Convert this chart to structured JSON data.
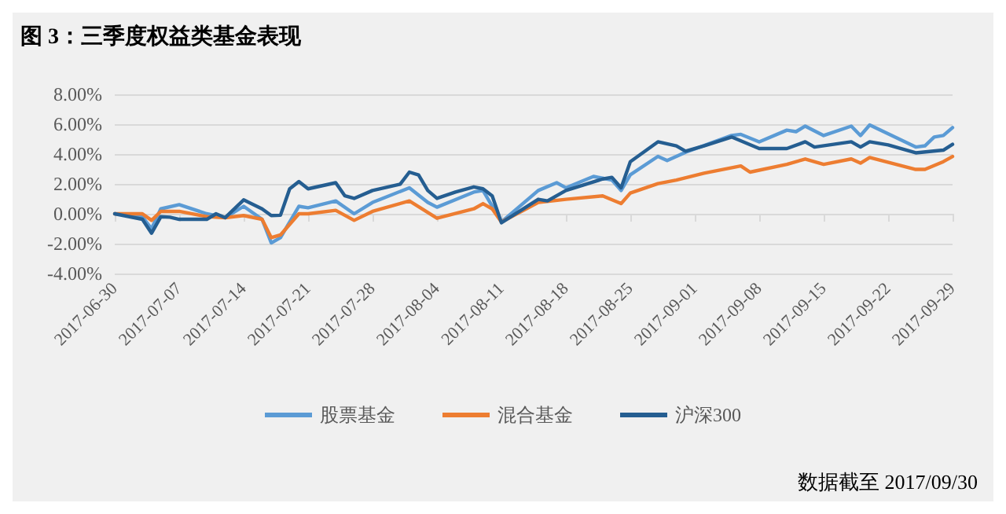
{
  "chart_data": {
    "type": "line",
    "title": "图 3：三季度权益类基金表现",
    "annotations": [
      "数据截至 2017/09/30"
    ],
    "xlim": [
      "2017-06-30",
      "2017-09-29"
    ],
    "xticks": [
      "2017-06-30",
      "2017-07-07",
      "2017-07-14",
      "2017-07-21",
      "2017-07-28",
      "2017-08-04",
      "2017-08-11",
      "2017-08-18",
      "2017-08-25",
      "2017-09-01",
      "2017-09-08",
      "2017-09-15",
      "2017-09-22",
      "2017-09-29"
    ],
    "ylim": [
      -4,
      8
    ],
    "yticks": [
      {
        "value": -4,
        "label": "-4.00%"
      },
      {
        "value": -2,
        "label": "-2.00%"
      },
      {
        "value": 0,
        "label": "0.00%"
      },
      {
        "value": 2,
        "label": "2.00%"
      },
      {
        "value": 4,
        "label": "4.00%"
      },
      {
        "value": 6,
        "label": "6.00%"
      },
      {
        "value": 8,
        "label": "8.00%"
      }
    ],
    "grid": "y",
    "legend": "bottom",
    "marker": "none",
    "line_style": "solid",
    "series": [
      {
        "name": "股票基金",
        "color": "#5b9bd5",
        "x": [
          "2017-06-30",
          "2017-07-03",
          "2017-07-04",
          "2017-07-05",
          "2017-07-07",
          "2017-07-10",
          "2017-07-12",
          "2017-07-14",
          "2017-07-16",
          "2017-07-17",
          "2017-07-18",
          "2017-07-20",
          "2017-07-21",
          "2017-07-24",
          "2017-07-26",
          "2017-07-28",
          "2017-08-01",
          "2017-08-03",
          "2017-08-04",
          "2017-08-08",
          "2017-08-09",
          "2017-08-11",
          "2017-08-15",
          "2017-08-17",
          "2017-08-18",
          "2017-08-21",
          "2017-08-23",
          "2017-08-24",
          "2017-08-25",
          "2017-08-28",
          "2017-08-29",
          "2017-08-31",
          "2017-09-05",
          "2017-09-06",
          "2017-09-08",
          "2017-09-11",
          "2017-09-12",
          "2017-09-13",
          "2017-09-15",
          "2017-09-18",
          "2017-09-19",
          "2017-09-20",
          "2017-09-25",
          "2017-09-26",
          "2017-09-27",
          "2017-09-28",
          "2017-09-29"
        ],
        "values": [
          0,
          -0.2,
          -1.0,
          0.33,
          0.61,
          0,
          -0.26,
          0.5,
          -0.37,
          -1.95,
          -1.6,
          0.5,
          0.4,
          0.86,
          0,
          0.76,
          1.74,
          0.76,
          0.44,
          1.45,
          1.56,
          -0.55,
          1.56,
          2.08,
          1.74,
          2.5,
          2.26,
          1.56,
          2.61,
          3.84,
          3.56,
          4.12,
          5.24,
          5.32,
          4.82,
          5.6,
          5.5,
          5.87,
          5.24,
          5.87,
          5.24,
          5.95,
          4.47,
          4.55,
          5.14,
          5.24,
          5.77
        ]
      },
      {
        "name": "混合基金",
        "color": "#ed7d31",
        "x": [
          "2017-06-30",
          "2017-07-03",
          "2017-07-04",
          "2017-07-05",
          "2017-07-07",
          "2017-07-10",
          "2017-07-12",
          "2017-07-14",
          "2017-07-16",
          "2017-07-17",
          "2017-07-18",
          "2017-07-20",
          "2017-07-21",
          "2017-07-24",
          "2017-07-26",
          "2017-07-28",
          "2017-08-01",
          "2017-08-04",
          "2017-08-08",
          "2017-08-09",
          "2017-08-10",
          "2017-08-11",
          "2017-08-15",
          "2017-08-18",
          "2017-08-22",
          "2017-08-24",
          "2017-08-25",
          "2017-08-28",
          "2017-08-30",
          "2017-09-02",
          "2017-09-06",
          "2017-09-07",
          "2017-09-11",
          "2017-09-13",
          "2017-09-15",
          "2017-09-18",
          "2017-09-19",
          "2017-09-20",
          "2017-09-25",
          "2017-09-26",
          "2017-09-28",
          "2017-09-29"
        ],
        "values": [
          0,
          0,
          -0.44,
          0.16,
          0.16,
          -0.19,
          -0.26,
          -0.12,
          -0.37,
          -1.6,
          -1.42,
          0,
          0,
          0.23,
          -0.44,
          0.16,
          0.86,
          -0.3,
          0.33,
          0.68,
          0.33,
          -0.55,
          0.76,
          0.97,
          1.2,
          0.68,
          1.39,
          2.02,
          2.26,
          2.72,
          3.2,
          2.79,
          3.31,
          3.67,
          3.31,
          3.67,
          3.39,
          3.77,
          2.97,
          2.97,
          3.49,
          3.84
        ]
      },
      {
        "name": "沪深300",
        "color": "#255e91",
        "x": [
          "2017-06-30",
          "2017-07-03",
          "2017-07-04",
          "2017-07-05",
          "2017-07-06",
          "2017-07-07",
          "2017-07-10",
          "2017-07-11",
          "2017-07-12",
          "2017-07-14",
          "2017-07-16",
          "2017-07-17",
          "2017-07-18",
          "2017-07-19",
          "2017-07-20",
          "2017-07-21",
          "2017-07-24",
          "2017-07-25",
          "2017-07-26",
          "2017-07-28",
          "2017-07-31",
          "2017-08-01",
          "2017-08-02",
          "2017-08-03",
          "2017-08-04",
          "2017-08-06",
          "2017-08-08",
          "2017-08-09",
          "2017-08-10",
          "2017-08-11",
          "2017-08-15",
          "2017-08-16",
          "2017-08-18",
          "2017-08-22",
          "2017-08-23",
          "2017-08-24",
          "2017-08-25",
          "2017-08-28",
          "2017-08-30",
          "2017-08-31",
          "2017-09-02",
          "2017-09-05",
          "2017-09-08",
          "2017-09-11",
          "2017-09-13",
          "2017-09-14",
          "2017-09-18",
          "2017-09-19",
          "2017-09-20",
          "2017-09-22",
          "2017-09-25",
          "2017-09-28",
          "2017-09-29"
        ],
        "values": [
          0,
          -0.37,
          -1.3,
          -0.2,
          -0.23,
          -0.37,
          -0.37,
          0,
          -0.26,
          0.93,
          0.33,
          -0.12,
          -0.1,
          1.67,
          2.16,
          1.67,
          2.08,
          1.2,
          1.03,
          1.56,
          1.98,
          2.79,
          2.6,
          1.56,
          1.03,
          1.45,
          1.8,
          1.67,
          1.2,
          -0.6,
          0.97,
          0.86,
          1.56,
          2.33,
          2.44,
          1.74,
          3.49,
          4.82,
          4.55,
          4.19,
          4.55,
          5.14,
          4.37,
          4.37,
          4.82,
          4.47,
          4.82,
          4.47,
          4.82,
          4.61,
          4.08,
          4.26,
          4.65
        ]
      }
    ]
  }
}
